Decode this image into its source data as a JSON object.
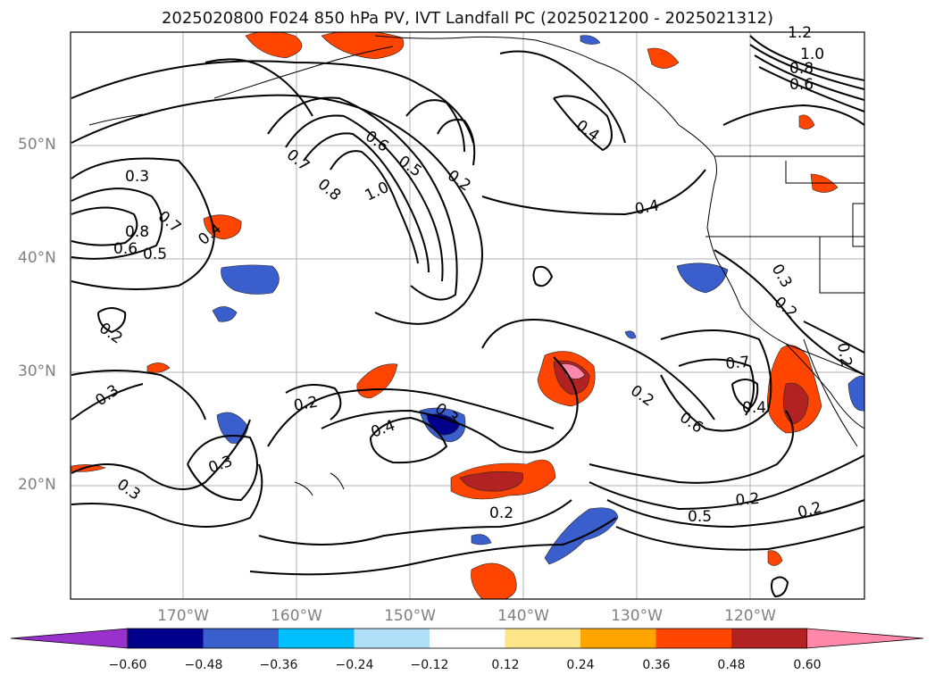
{
  "title": "2025020800 F024 850 hPa PV, IVT Landfall PC (2025021200 - 2025021312)",
  "axes": {
    "lat_labels": [
      "50°N",
      "40°N",
      "30°N",
      "20°N"
    ],
    "lon_labels": [
      "170°W",
      "160°W",
      "150°W",
      "140°W",
      "130°W",
      "120°W"
    ]
  },
  "contour_labels": [
    "0.3",
    "0.7",
    "0.8",
    "0.6",
    "0.5",
    "0.4",
    "0.7",
    "0.8",
    "0.6",
    "0.5",
    "1.0",
    "0.2",
    "0.4",
    "1.2",
    "1.0",
    "0.8",
    "0.6",
    "0.4",
    "0.3",
    "0.2",
    "0.2",
    "0.3",
    "0.2",
    "0.3",
    "0.4",
    "0.3",
    "0.3",
    "0.2",
    "0.2",
    "0.6",
    "0.7",
    "0.4",
    "0.5",
    "0.2",
    "0.2",
    "0.2"
  ],
  "colorbar": {
    "ticks": [
      "−0.60",
      "−0.48",
      "−0.36",
      "−0.24",
      "−0.12",
      "0.12",
      "0.24",
      "0.36",
      "0.48",
      "0.60"
    ],
    "colors": [
      "#9932cc",
      "#00008b",
      "#3a5fcd",
      "#00bfff",
      "#b0e0f8",
      "#ffffff",
      "#fde68a",
      "#ffa500",
      "#ff4500",
      "#b22222",
      "#ff88aa"
    ]
  }
}
